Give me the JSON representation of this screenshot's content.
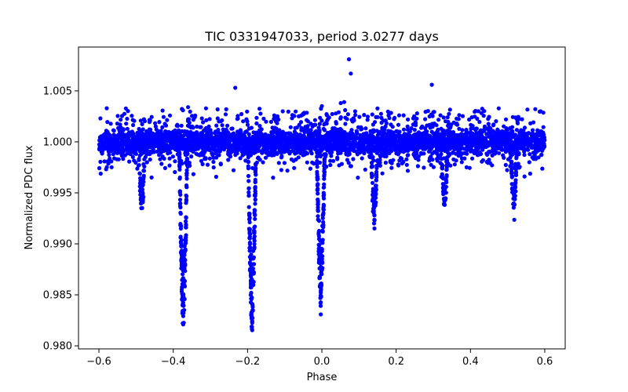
{
  "chart_data": {
    "type": "scatter",
    "title": "TIC 0331947033, period 3.0277 days",
    "xlabel": "Phase",
    "ylabel": "Normalized PDC flux",
    "xlim": [
      -0.655,
      0.655
    ],
    "ylim": [
      0.9797,
      1.0093
    ],
    "xticks": [
      -0.6,
      -0.4,
      -0.2,
      0.0,
      0.2,
      0.4,
      0.6
    ],
    "xtick_labels": [
      "−0.6",
      "−0.4",
      "−0.2",
      "0.0",
      "0.2",
      "0.4",
      "0.6"
    ],
    "yticks": [
      0.98,
      0.985,
      0.99,
      0.995,
      1.0,
      1.005
    ],
    "ytick_labels": [
      "0.980",
      "0.985",
      "0.990",
      "0.995",
      "1.000",
      "1.005"
    ],
    "grid": false,
    "legend": "none",
    "marker_color": "#0000ff",
    "baseline": {
      "x_range": [
        -0.6,
        0.6
      ],
      "center": 1.0,
      "core_spread": 0.0009,
      "edge_spread": 0.0022
    },
    "dips": [
      {
        "center": -0.373,
        "depth": 0.0185
      },
      {
        "center": -0.188,
        "depth": 0.0185
      },
      {
        "center": -0.003,
        "depth": 0.0165
      },
      {
        "center": 0.141,
        "depth": 0.0082
      },
      {
        "center": 0.33,
        "depth": 0.007
      },
      {
        "center": 0.517,
        "depth": 0.007
      },
      {
        "center": -0.485,
        "depth": 0.007
      }
    ],
    "outliers": [
      {
        "x": 0.073,
        "y": 1.0081
      },
      {
        "x": 0.078,
        "y": 1.0067
      },
      {
        "x": -0.233,
        "y": 1.0053
      },
      {
        "x": 0.296,
        "y": 1.0056
      },
      {
        "x": 0.06,
        "y": 1.0039
      },
      {
        "x": 0.051,
        "y": 1.0038
      },
      {
        "x": -0.12,
        "y": 1.0025
      },
      {
        "x": 0.0,
        "y": 1.0035
      },
      {
        "x": -0.36,
        "y": 1.0034
      }
    ]
  }
}
